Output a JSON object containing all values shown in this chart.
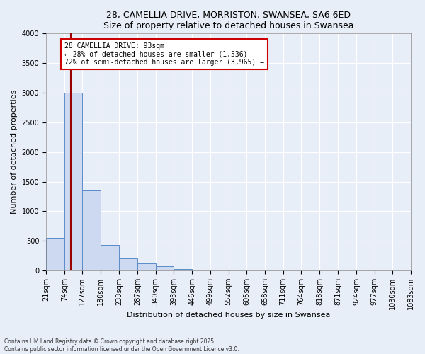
{
  "title1": "28, CAMELLIA DRIVE, MORRISTON, SWANSEA, SA6 6ED",
  "title2": "Size of property relative to detached houses in Swansea",
  "xlabel": "Distribution of detached houses by size in Swansea",
  "ylabel": "Number of detached properties",
  "bin_edges": [
    21,
    74,
    127,
    180,
    233,
    287,
    340,
    393,
    446,
    499,
    552,
    605,
    658,
    711,
    764,
    818,
    871,
    924,
    977,
    1030,
    1083
  ],
  "bar_heights": [
    550,
    3000,
    1350,
    430,
    200,
    120,
    80,
    30,
    15,
    10,
    8,
    5,
    4,
    3,
    2,
    2,
    1,
    1,
    1,
    1
  ],
  "bar_color": "#ccd9f0",
  "bar_edge_color": "#5b8cc8",
  "property_value": 93,
  "line_color": "#990000",
  "annotation_text": "28 CAMELLIA DRIVE: 93sqm\n← 28% of detached houses are smaller (1,536)\n72% of semi-detached houses are larger (3,965) →",
  "annotation_box_facecolor": "#ffffff",
  "annotation_box_edgecolor": "#cc0000",
  "ylim": [
    0,
    4000
  ],
  "yticks": [
    0,
    500,
    1000,
    1500,
    2000,
    2500,
    3000,
    3500,
    4000
  ],
  "footer_line1": "Contains HM Land Registry data © Crown copyright and database right 2025.",
  "footer_line2": "Contains public sector information licensed under the Open Government Licence v3.0.",
  "bg_color": "#e8eef8",
  "plot_bg_color": "#e8eef8",
  "title_fontsize": 9,
  "axis_label_fontsize": 8,
  "tick_fontsize": 7,
  "annotation_fontsize": 7
}
